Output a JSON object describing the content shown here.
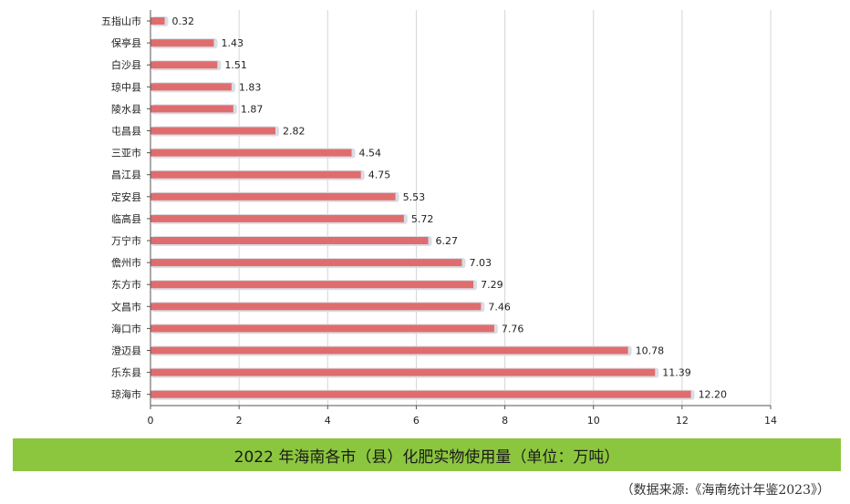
{
  "chart_data": {
    "type": "bar",
    "orientation": "horizontal",
    "categories": [
      "五指山市",
      "保亭县",
      "白沙县",
      "琼中县",
      "陵水县",
      "屯昌县",
      "三亚市",
      "昌江县",
      "定安县",
      "临高县",
      "万宁市",
      "儋州市",
      "东方市",
      "文昌市",
      "海口市",
      "澄迈县",
      "乐东县",
      "琼海市"
    ],
    "values": [
      0.32,
      1.43,
      1.51,
      1.83,
      1.87,
      2.82,
      4.54,
      4.75,
      5.53,
      5.72,
      6.27,
      7.03,
      7.29,
      7.46,
      7.76,
      10.78,
      11.39,
      12.2
    ],
    "value_labels": [
      "0.32",
      "1.43",
      "1.51",
      "1.83",
      "1.87",
      "2.82",
      "4.54",
      "4.75",
      "5.53",
      "5.72",
      "6.27",
      "7.03",
      "7.29",
      "7.46",
      "7.76",
      "10.78",
      "11.39",
      "12.20"
    ],
    "xlim": [
      0,
      14
    ],
    "x_ticks": [
      0,
      2,
      4,
      6,
      8,
      10,
      12,
      14
    ],
    "x_tick_labels": [
      "0",
      "2",
      "4",
      "6",
      "8",
      "10",
      "12",
      "14"
    ],
    "grid": "vertical",
    "bar_color": "#e06d6d",
    "bar_shadow_color": "#d9dde6",
    "grid_color": "#d4d4d4",
    "title": "2022 年海南各市（县）化肥实物使用量（单位：万吨）",
    "source": "（数据来源:《海南统计年鉴2023》）"
  },
  "colors": {
    "title_band": "#8cc63f"
  }
}
